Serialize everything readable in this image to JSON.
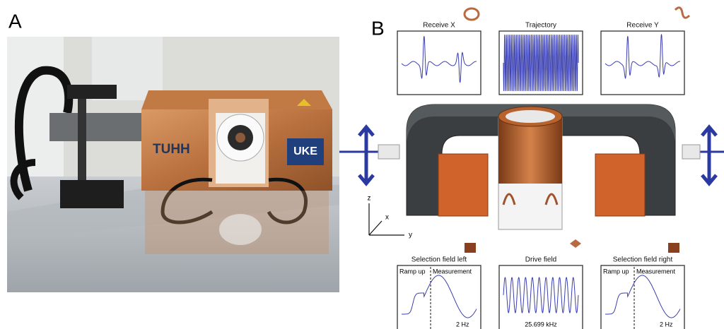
{
  "panel_a": {
    "label": "A",
    "logo_left": "TUHH",
    "logo_right": "UKE"
  },
  "panel_b": {
    "label": "B",
    "top_plots": [
      {
        "title": "Receive X"
      },
      {
        "title": "Trajectory"
      },
      {
        "title": "Receive Y"
      }
    ],
    "bottom_plots": [
      {
        "title": "Selection field left",
        "ramp_label": "Ramp up",
        "measure_label": "Measurement",
        "frequency": "2 Hz"
      },
      {
        "title": "Drive field",
        "frequency": "25.699 kHz"
      },
      {
        "title": "Selection field right",
        "ramp_label": "Ramp up",
        "measure_label": "Measurement",
        "frequency": "2 Hz"
      }
    ],
    "axes": {
      "z": "z",
      "x": "x",
      "y": "y"
    }
  }
}
